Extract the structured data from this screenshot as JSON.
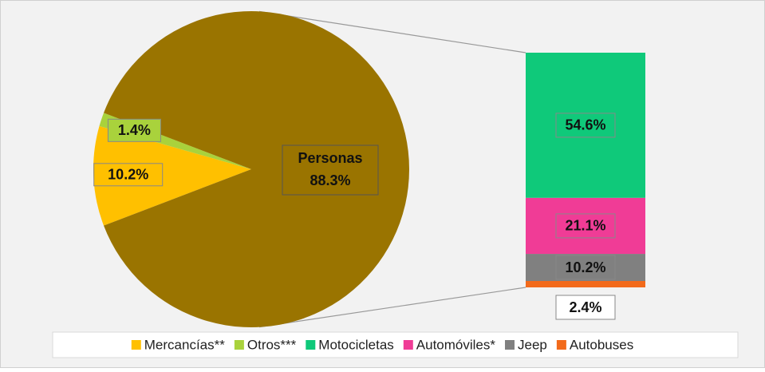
{
  "chart_data": {
    "type": "pie-of-bar",
    "pie": {
      "categories": [
        "Personas",
        "Mercancías**",
        "Otros***"
      ],
      "values": [
        88.3,
        10.2,
        1.4
      ],
      "value_labels": [
        "88.3%",
        "10.2%",
        "1.4%"
      ],
      "colors": [
        "#9a7400",
        "#ffc000",
        "#a9d23c"
      ]
    },
    "bar": {
      "categories": [
        "Motocicletas",
        "Automóviles*",
        "Jeep",
        "Autobuses"
      ],
      "values": [
        54.6,
        21.1,
        10.2,
        2.4
      ],
      "value_labels": [
        "54.6%",
        "21.1%",
        "10.2%",
        "2.4%"
      ],
      "colors": [
        "#0fc97a",
        "#f03c96",
        "#808080",
        "#f26a1b"
      ]
    },
    "legend": "bottom"
  }
}
